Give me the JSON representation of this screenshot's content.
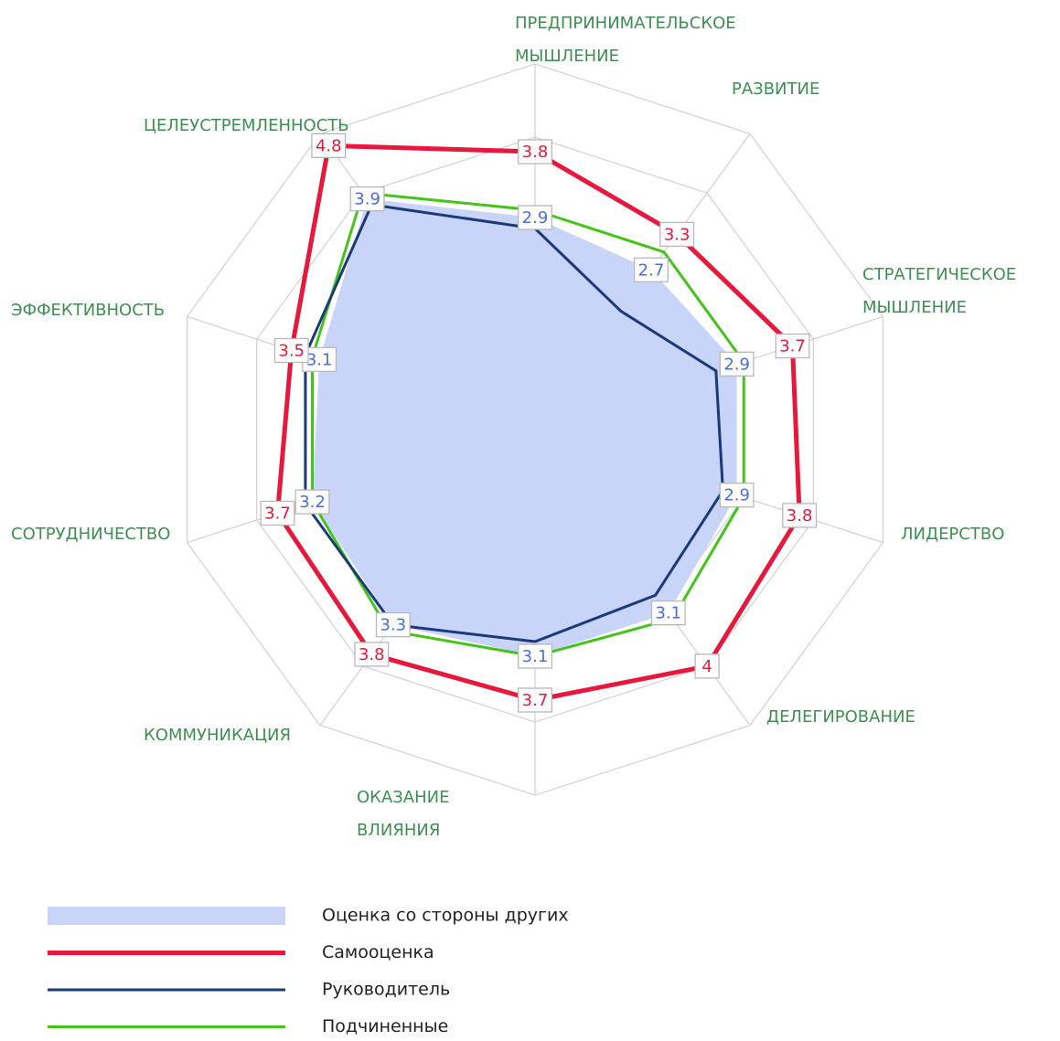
{
  "chart_data": {
    "type": "radar",
    "categories": [
      "ПРЕДПРИНИМАТЕЛЬСКОЕ МЫШЛЕНИЕ",
      "РАЗВИТИЕ",
      "СТРАТЕГИЧЕСКОЕ МЫШЛЕНИЕ",
      "ЛИДЕРСТВО",
      "ДЕЛЕГИРОВАНИЕ",
      "ОКАЗАНИЕ ВЛИЯНИЯ",
      "КОММУНИКАЦИЯ",
      "СОТРУДНИЧЕСТВО",
      "ЭФФЕКТИВНОСТЬ",
      "ЦЕЛЕУСТРЕМЛЕННОСТЬ"
    ],
    "ylim": [
      0,
      5
    ],
    "yticks": [
      1,
      2,
      3,
      4,
      5
    ],
    "grid": true,
    "series": [
      {
        "name": "Оценка со стороны других",
        "style": "area",
        "color": "#c9d4f9",
        "label_color": "#4a6ee0",
        "show_labels": true,
        "values": [
          2.9,
          2.7,
          2.9,
          2.9,
          3.1,
          3.1,
          3.3,
          3.2,
          3.1,
          3.9
        ]
      },
      {
        "name": "Самооценка",
        "style": "line",
        "color": "#e8173c",
        "label_color": "#e8173c",
        "show_labels": true,
        "values": [
          3.8,
          3.3,
          3.7,
          3.8,
          4,
          3.7,
          3.8,
          3.7,
          3.5,
          4.8
        ]
      },
      {
        "name": "Руководитель",
        "style": "line",
        "color": "#1a3a7a",
        "show_labels": false,
        "values": [
          2.75,
          2.0,
          2.6,
          2.7,
          2.8,
          2.9,
          3.3,
          3.3,
          3.3,
          3.8
        ]
      },
      {
        "name": "Подчиненные",
        "style": "line",
        "color": "#44c31a",
        "show_labels": false,
        "values": [
          3.0,
          3.0,
          3.0,
          3.0,
          3.2,
          3.1,
          3.4,
          3.2,
          3.2,
          4.0
        ]
      }
    ]
  }
}
